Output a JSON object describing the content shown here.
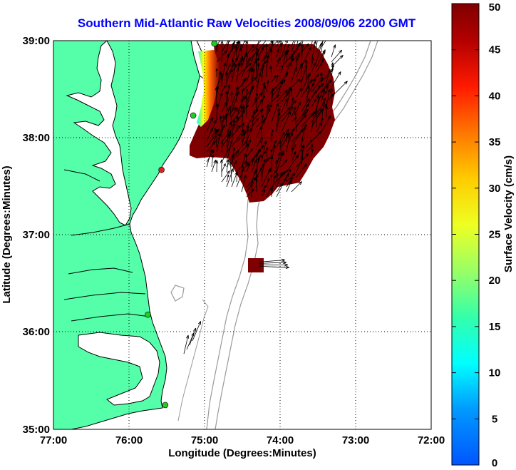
{
  "chart_data": {
    "type": "map",
    "title": "Southern Mid-Atlantic Raw Velocities 2008/09/06 2200 GMT",
    "xlabel": "Longitude (Degrees:Minutes)",
    "ylabel": "Latitude (Degrees:Minutes)",
    "x_ticks": [
      "77:00",
      "76:00",
      "75:00",
      "74:00",
      "73:00",
      "72:00"
    ],
    "y_ticks": [
      "39:00",
      "38:00",
      "37:00",
      "36:00",
      "35:00"
    ],
    "xlim": [
      -77,
      -72
    ],
    "ylim": [
      35,
      39
    ],
    "grid": true,
    "colorbar": {
      "label": "Surface Velocity (cm/s)",
      "range": [
        0,
        50
      ],
      "ticks": [
        "50",
        "45",
        "40",
        "35",
        "30",
        "25",
        "20",
        "15",
        "10",
        "5",
        "0"
      ]
    },
    "stations": [
      {
        "lon": -74.87,
        "lat": 38.97,
        "color": "#22cc22"
      },
      {
        "lon": -75.15,
        "lat": 38.23,
        "color": "#22cc22"
      },
      {
        "lon": -75.57,
        "lat": 37.67,
        "color": "#dd2222"
      },
      {
        "lon": -75.75,
        "lat": 36.18,
        "color": "#22cc22"
      },
      {
        "lon": -75.52,
        "lat": 35.25,
        "color": "#22cc22"
      }
    ],
    "isolated_cluster": {
      "lon": -74.35,
      "lat": 36.7
    }
  },
  "colors": {
    "land": "#55ffaa",
    "coast": "#000000",
    "bathymetry": "#999999",
    "title": "#0000ff",
    "velocity_high": "#7f0000"
  }
}
